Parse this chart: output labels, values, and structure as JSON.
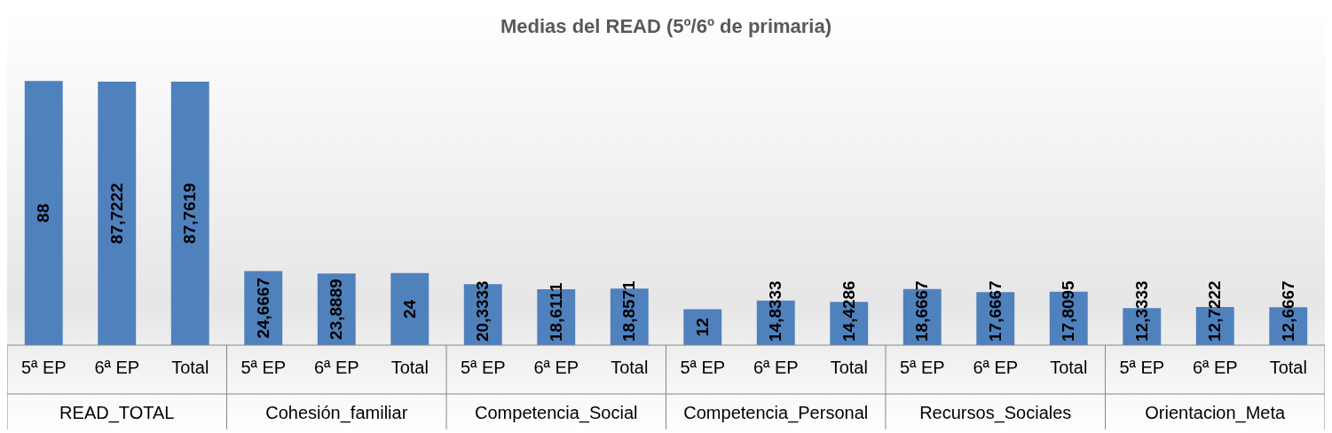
{
  "chart_data": {
    "type": "bar",
    "title": "Medias del READ (5º/6º de primaria)",
    "categories": [
      "5ª EP",
      "6ª EP",
      "Total",
      "5ª EP",
      "6ª EP",
      "Total",
      "5ª EP",
      "6ª EP",
      "Total",
      "5ª EP",
      "6ª EP",
      "Total",
      "5ª EP",
      "6ª EP",
      "Total",
      "5ª EP",
      "6ª EP",
      "Total"
    ],
    "values": [
      88,
      87.7222,
      87.7619,
      24.6667,
      23.8889,
      24,
      20.3333,
      18.6111,
      18.8571,
      12,
      14.8333,
      14.4286,
      18.6667,
      17.6667,
      17.8095,
      12.3333,
      12.7222,
      12.6667
    ],
    "value_labels": [
      "88",
      "87,7222",
      "87,7619",
      "24,6667",
      "23,8889",
      "24",
      "20,3333",
      "18,6111",
      "18,8571",
      "12",
      "14,8333",
      "14,4286",
      "18,6667",
      "17,6667",
      "17,8095",
      "12,3333",
      "12,7222",
      "12,6667"
    ],
    "color": "#4f81bd",
    "annotations": [
      "READ_TOTAL",
      "Cohesión_familiar",
      "Competencia_Social",
      "Competencia_Personal",
      "Recursos_Sociales",
      "Orientacion_Meta"
    ],
    "legend": false
  }
}
